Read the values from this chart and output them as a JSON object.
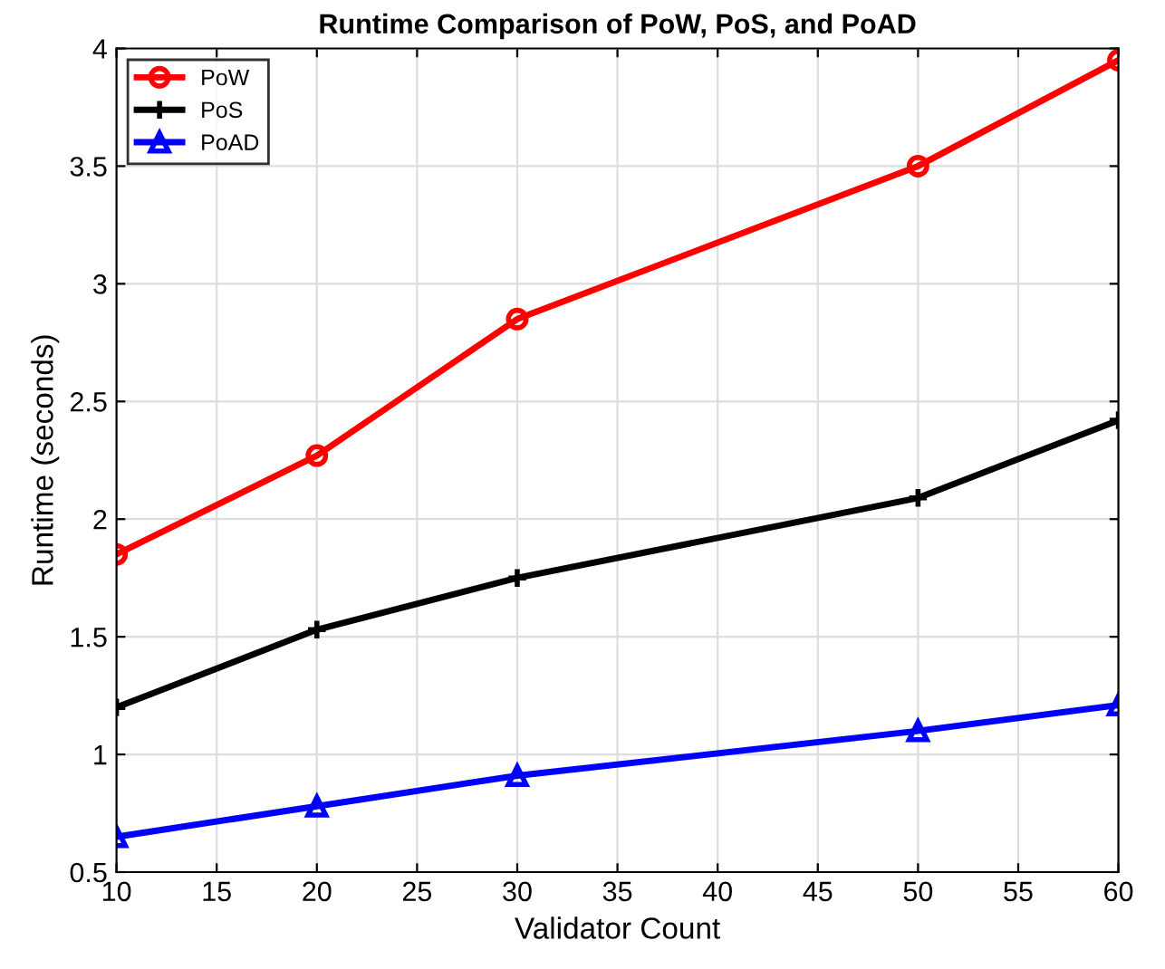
{
  "chart_data": {
    "type": "line",
    "title": "Runtime Comparison of PoW, PoS, and PoAD",
    "xlabel": "Validator Count",
    "ylabel": "Runtime (seconds)",
    "x": [
      10,
      20,
      30,
      50,
      60
    ],
    "series": [
      {
        "name": "PoW",
        "color": "#ff0000",
        "marker": "circle",
        "values": [
          1.85,
          2.27,
          2.85,
          3.5,
          3.95
        ]
      },
      {
        "name": "PoS",
        "color": "#000000",
        "marker": "cross",
        "values": [
          1.2,
          1.53,
          1.75,
          2.09,
          2.42
        ]
      },
      {
        "name": "PoAD",
        "color": "#0000ff",
        "marker": "triangle",
        "values": [
          0.65,
          0.78,
          0.91,
          1.1,
          1.21
        ]
      }
    ],
    "xlim": [
      10,
      60
    ],
    "xticks": [
      10,
      15,
      20,
      25,
      30,
      35,
      40,
      45,
      50,
      55,
      60
    ],
    "ylim": [
      0.5,
      4
    ],
    "yticks": [
      0.5,
      1,
      1.5,
      2,
      2.5,
      3,
      3.5,
      4
    ],
    "grid": true,
    "legend": "top left",
    "line_style": "solid"
  }
}
